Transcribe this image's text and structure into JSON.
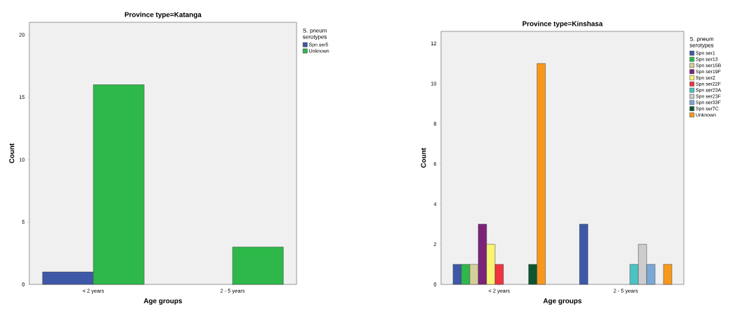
{
  "chart_data": [
    {
      "type": "bar",
      "title": "Province type=Katanga",
      "xlabel": "Age groups",
      "ylabel": "Count",
      "legend_title": "S. pneum serotypes",
      "legend": "right",
      "categories": [
        "< 2 years",
        "2 - 5 years"
      ],
      "ylim": [
        0,
        21
      ],
      "yticks": [
        0,
        5,
        10,
        15,
        20
      ],
      "series": [
        {
          "name": "Spn ser5",
          "color": "#3e58a8",
          "values": [
            1,
            null
          ]
        },
        {
          "name": "Unknown",
          "color": "#2eb84a",
          "values": [
            16,
            3
          ]
        }
      ]
    },
    {
      "type": "bar",
      "title": "Province type=Kinshasa",
      "xlabel": "Age groups",
      "ylabel": "Count",
      "legend_title": "S. pneum serotypes",
      "legend": "right",
      "categories": [
        "< 2 years",
        "2 - 5 years"
      ],
      "ylim": [
        0,
        12.6
      ],
      "yticks": [
        0,
        2,
        4,
        6,
        8,
        10,
        12
      ],
      "series": [
        {
          "name": "Spn ser1",
          "color": "#3e58a8",
          "values": [
            1,
            3
          ]
        },
        {
          "name": "Spn ser13",
          "color": "#2eb84a",
          "values": [
            1,
            null
          ]
        },
        {
          "name": "Spn ser15B",
          "color": "#d4cf9a",
          "values": [
            1,
            null
          ]
        },
        {
          "name": "Spn ser19F",
          "color": "#7b2379",
          "values": [
            3,
            null
          ]
        },
        {
          "name": "Spn ser2",
          "color": "#f9f471",
          "values": [
            2,
            null
          ]
        },
        {
          "name": "Spn ser22F",
          "color": "#ef3340",
          "values": [
            1,
            null
          ]
        },
        {
          "name": "Spn ser23A",
          "color": "#4bc3c3",
          "values": [
            null,
            1
          ]
        },
        {
          "name": "Spn ser23F",
          "color": "#cccccc",
          "values": [
            null,
            2
          ]
        },
        {
          "name": "Spn ser33F",
          "color": "#7ba7d6",
          "values": [
            null,
            1
          ]
        },
        {
          "name": "Spn ser7C",
          "color": "#0c5530",
          "values": [
            1,
            null
          ]
        },
        {
          "name": "Unknown",
          "color": "#f7981d",
          "values": [
            11,
            1
          ]
        }
      ]
    }
  ]
}
